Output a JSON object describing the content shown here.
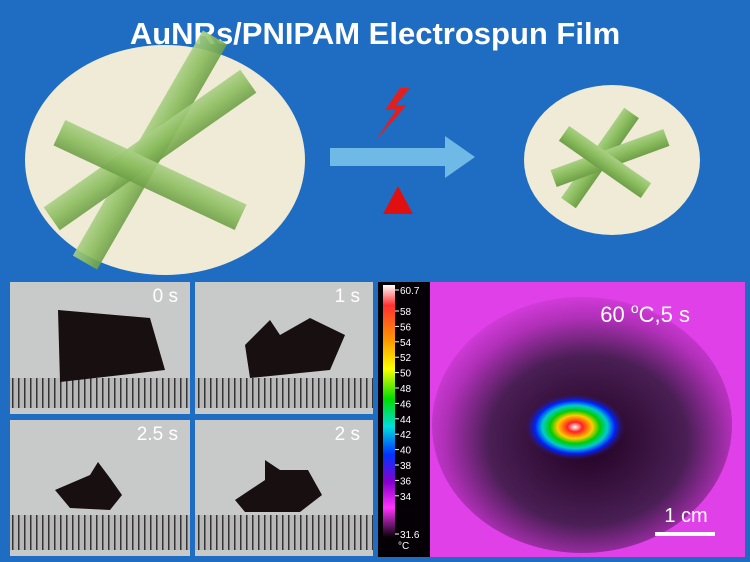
{
  "header": {
    "title": "AuNRs/PNIPAM Electrospun Film"
  },
  "photos": {
    "labels": [
      "0 s",
      "1 s",
      "2.5 s",
      "2 s"
    ]
  },
  "thermal": {
    "label": [
      "60 ",
      "o",
      "C,5 s"
    ],
    "scale_bar": "1 cm",
    "colorbar": {
      "ticks": [
        "60.7",
        "58",
        "56",
        "54",
        "52",
        "50",
        "48",
        "46",
        "44",
        "42",
        "40",
        "38",
        "36",
        "34",
        "31.6"
      ],
      "unit": "°C"
    }
  }
}
